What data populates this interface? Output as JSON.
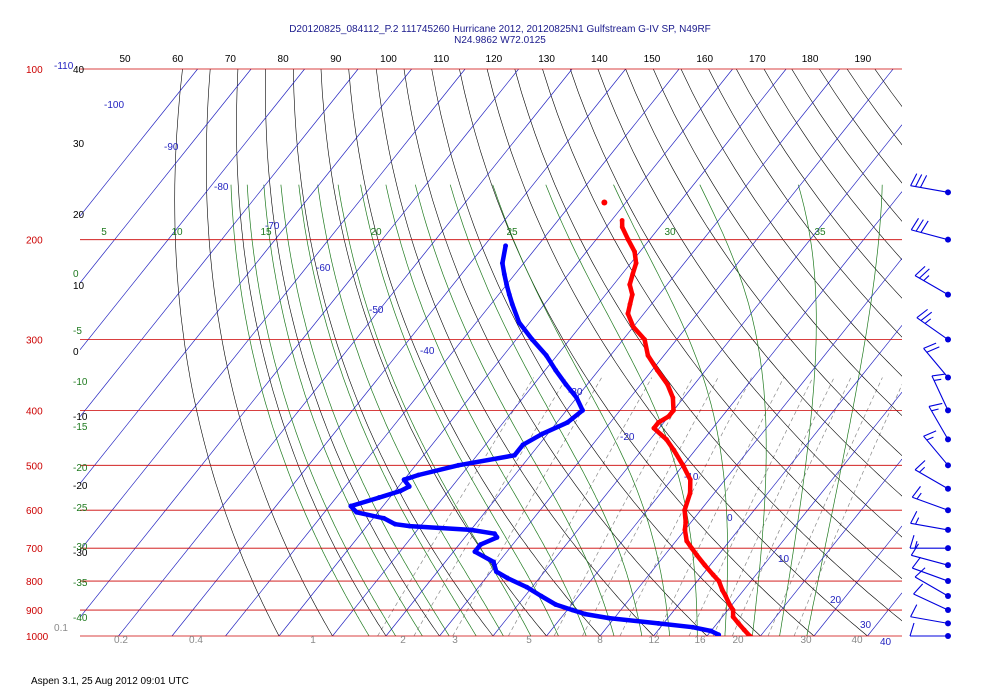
{
  "header": {
    "line1": "D20120825_084112_P.2 111745260 Hurricane 2012, 20120825N1 Gulfstream G-IV SP, N49RF",
    "line2": "N24.9862 W72.0125"
  },
  "footer": {
    "text": "Aspen 3.1, 25 Aug 2012  09:01 UTC"
  },
  "colors": {
    "isobar": "#cc0000",
    "isotherm": "#1f1fbf",
    "dry_adiabat": "#000000",
    "moist_adiabat": "#1f7a1f",
    "mixing_ratio": "#8a8a8a",
    "temperature": "#ff0000",
    "dewpoint": "#0000ff",
    "wind_barb": "#0000dd"
  },
  "chart_data": {
    "type": "skew-t",
    "pressure_levels_hpa": [
      "100",
      "200",
      "300",
      "400",
      "500",
      "600",
      "700",
      "800",
      "900",
      "1000"
    ],
    "top_axis_ticks": [
      "50",
      "60",
      "70",
      "80",
      "90",
      "100",
      "110",
      "120",
      "130",
      "140",
      "150",
      "160",
      "170",
      "180",
      "190"
    ],
    "dry_adiabat_labels": [
      "40",
      "30",
      "20",
      "10",
      "0",
      "-10",
      "-20",
      "-30"
    ],
    "moist_adiabat_labels": [
      "5",
      "10",
      "15",
      "20",
      "25",
      "30",
      "35"
    ],
    "moist_left_labels": [
      "0",
      "-5",
      "-10",
      "-15",
      "-20",
      "-25",
      "-30",
      "-35",
      "-40"
    ],
    "isotherm_labels": [
      "-110",
      "-100",
      "-90",
      "-80",
      "-70",
      "-60",
      "-50",
      "-40",
      "-30",
      "-20",
      "-10",
      "0",
      "10",
      "20",
      "30",
      "40"
    ],
    "mixing_ratio_labels": [
      "0.1",
      "0.2",
      "0.4",
      "1",
      "2",
      "3",
      "5",
      "8",
      "12",
      "16",
      "20",
      "30",
      "40"
    ],
    "series": [
      {
        "name": "temperature",
        "points": [
          {
            "p": 185,
            "t": -58
          },
          {
            "p": 190,
            "t": -57
          },
          {
            "p": 200,
            "t": -54
          },
          {
            "p": 210,
            "t": -51
          },
          {
            "p": 220,
            "t": -49
          },
          {
            "p": 230,
            "t": -48
          },
          {
            "p": 240,
            "t": -47
          },
          {
            "p": 250,
            "t": -45
          },
          {
            "p": 260,
            "t": -44
          },
          {
            "p": 270,
            "t": -43
          },
          {
            "p": 285,
            "t": -40
          },
          {
            "p": 300,
            "t": -36
          },
          {
            "p": 320,
            "t": -33
          },
          {
            "p": 340,
            "t": -29
          },
          {
            "p": 360,
            "t": -25
          },
          {
            "p": 380,
            "t": -22
          },
          {
            "p": 400,
            "t": -20
          },
          {
            "p": 410,
            "t": -20
          },
          {
            "p": 420,
            "t": -21
          },
          {
            "p": 430,
            "t": -21
          },
          {
            "p": 450,
            "t": -17
          },
          {
            "p": 470,
            "t": -14
          },
          {
            "p": 500,
            "t": -10
          },
          {
            "p": 530,
            "t": -6.5
          },
          {
            "p": 560,
            "t": -4.5
          },
          {
            "p": 600,
            "t": -3
          },
          {
            "p": 630,
            "t": -1
          },
          {
            "p": 650,
            "t": 0
          },
          {
            "p": 680,
            "t": 2
          },
          {
            "p": 700,
            "t": 4
          },
          {
            "p": 720,
            "t": 6
          },
          {
            "p": 750,
            "t": 9
          },
          {
            "p": 780,
            "t": 12
          },
          {
            "p": 800,
            "t": 14
          },
          {
            "p": 830,
            "t": 16
          },
          {
            "p": 850,
            "t": 17.5
          },
          {
            "p": 880,
            "t": 19.5
          },
          {
            "p": 900,
            "t": 21
          },
          {
            "p": 925,
            "t": 22
          },
          {
            "p": 950,
            "t": 24
          },
          {
            "p": 975,
            "t": 26
          },
          {
            "p": 1000,
            "t": 28
          },
          {
            "p": 1015,
            "t": 29.5
          }
        ]
      },
      {
        "name": "dewpoint",
        "points": [
          {
            "p": 205,
            "t": -76
          },
          {
            "p": 220,
            "t": -74
          },
          {
            "p": 230,
            "t": -72
          },
          {
            "p": 240,
            "t": -70
          },
          {
            "p": 250,
            "t": -68
          },
          {
            "p": 260,
            "t": -66
          },
          {
            "p": 280,
            "t": -62
          },
          {
            "p": 300,
            "t": -57
          },
          {
            "p": 320,
            "t": -52
          },
          {
            "p": 340,
            "t": -48
          },
          {
            "p": 360,
            "t": -44
          },
          {
            "p": 380,
            "t": -40
          },
          {
            "p": 400,
            "t": -37
          },
          {
            "p": 420,
            "t": -38
          },
          {
            "p": 440,
            "t": -41
          },
          {
            "p": 460,
            "t": -43
          },
          {
            "p": 480,
            "t": -43
          },
          {
            "p": 500,
            "t": -52
          },
          {
            "p": 520,
            "t": -58
          },
          {
            "p": 530,
            "t": -60
          },
          {
            "p": 545,
            "t": -58
          },
          {
            "p": 555,
            "t": -59
          },
          {
            "p": 570,
            "t": -62
          },
          {
            "p": 590,
            "t": -66
          },
          {
            "p": 605,
            "t": -64
          },
          {
            "p": 620,
            "t": -58
          },
          {
            "p": 635,
            "t": -55
          },
          {
            "p": 640,
            "t": -52
          },
          {
            "p": 650,
            "t": -40
          },
          {
            "p": 660,
            "t": -35
          },
          {
            "p": 670,
            "t": -34
          },
          {
            "p": 690,
            "t": -36
          },
          {
            "p": 710,
            "t": -36
          },
          {
            "p": 740,
            "t": -31
          },
          {
            "p": 770,
            "t": -29
          },
          {
            "p": 790,
            "t": -26
          },
          {
            "p": 820,
            "t": -21
          },
          {
            "p": 850,
            "t": -17
          },
          {
            "p": 880,
            "t": -13
          },
          {
            "p": 900,
            "t": -9
          },
          {
            "p": 915,
            "t": -6
          },
          {
            "p": 930,
            "t": -1
          },
          {
            "p": 950,
            "t": 9
          },
          {
            "p": 965,
            "t": 16
          },
          {
            "p": 980,
            "t": 20
          },
          {
            "p": 995,
            "t": 22
          },
          {
            "p": 1010,
            "t": 22
          },
          {
            "p": 1015,
            "t": 21.5
          }
        ]
      }
    ],
    "isolated_points": [
      {
        "p": 172,
        "t": -64
      }
    ],
    "wind_barbs": [
      {
        "p": 165,
        "dir": 280,
        "kt": 30
      },
      {
        "p": 200,
        "dir": 285,
        "kt": 30
      },
      {
        "p": 250,
        "dir": 300,
        "kt": 25
      },
      {
        "p": 300,
        "dir": 305,
        "kt": 25
      },
      {
        "p": 350,
        "dir": 320,
        "kt": 20
      },
      {
        "p": 400,
        "dir": 335,
        "kt": 15
      },
      {
        "p": 450,
        "dir": 330,
        "kt": 15
      },
      {
        "p": 500,
        "dir": 320,
        "kt": 15
      },
      {
        "p": 550,
        "dir": 300,
        "kt": 15
      },
      {
        "p": 600,
        "dir": 290,
        "kt": 15
      },
      {
        "p": 650,
        "dir": 280,
        "kt": 15
      },
      {
        "p": 700,
        "dir": 270,
        "kt": 15
      },
      {
        "p": 750,
        "dir": 285,
        "kt": 10
      },
      {
        "p": 800,
        "dir": 290,
        "kt": 10
      },
      {
        "p": 850,
        "dir": 300,
        "kt": 10
      },
      {
        "p": 900,
        "dir": 295,
        "kt": 10
      },
      {
        "p": 950,
        "dir": 280,
        "kt": 10
      },
      {
        "p": 1000,
        "dir": 270,
        "kt": 10
      }
    ]
  }
}
